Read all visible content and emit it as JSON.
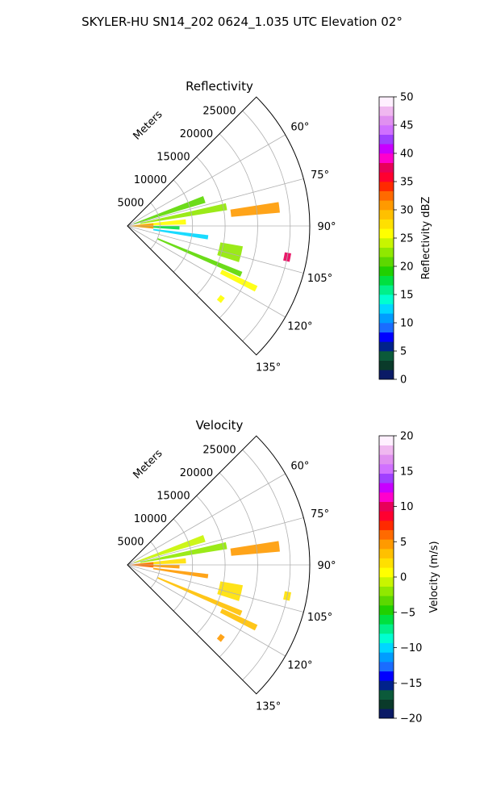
{
  "figure": {
    "title": "SKYLER-HU  SN14_202  0624_1.035 UTC Elevation 02°"
  },
  "chart_data": [
    {
      "type": "heatmap",
      "projection": "polar-sector",
      "title": "Reflectivity",
      "range_label": "Meters",
      "range_ticks": [
        "5000",
        "10000",
        "15000",
        "20000",
        "25000"
      ],
      "range_tick_values": [
        5000,
        10000,
        15000,
        20000,
        25000
      ],
      "range_max": 28000,
      "azimuth_range": [
        45,
        135
      ],
      "azimuth_ticks": [
        "60°",
        "75°",
        "90°",
        "105°",
        "120°",
        "135°"
      ],
      "azimuth_tick_values": [
        60,
        75,
        90,
        105,
        120,
        135
      ],
      "grid": true,
      "colorbar": {
        "label": "Reflectivity dBZ",
        "min": 0,
        "max": 50,
        "ticks": [
          "0",
          "5",
          "10",
          "15",
          "20",
          "25",
          "30",
          "35",
          "40",
          "45",
          "50"
        ],
        "tick_values": [
          0,
          5,
          10,
          15,
          20,
          25,
          30,
          35,
          40,
          45,
          50
        ],
        "colors": [
          "#0a1a66",
          "#0a3a2a",
          "#0b5a3a",
          "#00228b",
          "#0000ff",
          "#1a6cff",
          "#009dff",
          "#00d7ff",
          "#00ffd0",
          "#00f08a",
          "#00e040",
          "#20d000",
          "#5cd800",
          "#90e800",
          "#c8f500",
          "#ffff00",
          "#ffe000",
          "#ffc000",
          "#ff9a00",
          "#ff6a00",
          "#ff2a00",
          "#ff0030",
          "#e8005a",
          "#ff00cc",
          "#c800ff",
          "#a040ff",
          "#d070ff",
          "#e090f0",
          "#f0b8f0",
          "#fff0ff"
        ]
      },
      "echoes": [
        {
          "az": 71,
          "r0": 1000,
          "r1": 12500,
          "w": 5,
          "v": 20
        },
        {
          "az": 79,
          "r0": 2000,
          "r1": 15500,
          "w": 4,
          "v": 22
        },
        {
          "az": 86,
          "r0": 1200,
          "r1": 9000,
          "w": 5,
          "v": 25
        },
        {
          "az": 92,
          "r0": 500,
          "r1": 8000,
          "w": 4,
          "v": 18
        },
        {
          "az": 98,
          "r0": 4000,
          "r1": 12500,
          "w": 3,
          "v": 13
        },
        {
          "az": 83,
          "r0": 16000,
          "r1": 23500,
          "w": 4,
          "v": 31
        },
        {
          "az": 113,
          "r0": 5000,
          "r1": 19000,
          "w": 2.5,
          "v": 21
        },
        {
          "az": 116,
          "r0": 16000,
          "r1": 22000,
          "w": 2.5,
          "v": 26
        },
        {
          "az": 104,
          "r0": 14500,
          "r1": 18000,
          "w": 8,
          "v": 22
        },
        {
          "az": 101,
          "r0": 24500,
          "r1": 25500,
          "w": 3,
          "v": 38
        },
        {
          "az": 128,
          "r0": 17800,
          "r1": 18600,
          "w": 3,
          "v": 25
        },
        {
          "az": 90,
          "r0": 500,
          "r1": 4000,
          "w": 12,
          "v": 30
        }
      ]
    },
    {
      "type": "heatmap",
      "projection": "polar-sector",
      "title": "Velocity",
      "range_label": "Meters",
      "range_ticks": [
        "5000",
        "10000",
        "15000",
        "20000",
        "25000"
      ],
      "range_tick_values": [
        5000,
        10000,
        15000,
        20000,
        25000
      ],
      "range_max": 28000,
      "azimuth_range": [
        45,
        135
      ],
      "azimuth_ticks": [
        "60°",
        "75°",
        "90°",
        "105°",
        "120°",
        "135°"
      ],
      "azimuth_tick_values": [
        60,
        75,
        90,
        105,
        120,
        135
      ],
      "grid": true,
      "colorbar": {
        "label": "Velocity (m/s)",
        "min": -20,
        "max": 20,
        "ticks": [
          "−20",
          "−15",
          "−10",
          "−5",
          "0",
          "5",
          "10",
          "15",
          "20"
        ],
        "tick_values": [
          -20,
          -15,
          -10,
          -5,
          0,
          5,
          10,
          15,
          20
        ],
        "colors": [
          "#0a1a66",
          "#0a3a2a",
          "#0b5a3a",
          "#00228b",
          "#0000ff",
          "#1a6cff",
          "#009dff",
          "#00d7ff",
          "#00ffd0",
          "#00f08a",
          "#00e040",
          "#20d000",
          "#5cd800",
          "#90e800",
          "#c8f500",
          "#ffff00",
          "#ffe000",
          "#ffc000",
          "#ff9a00",
          "#ff6a00",
          "#ff2a00",
          "#ff0030",
          "#e8005a",
          "#ff00cc",
          "#c800ff",
          "#a040ff",
          "#d070ff",
          "#e090f0",
          "#f0b8f0",
          "#fff0ff"
        ]
      },
      "echoes": [
        {
          "az": 71,
          "r0": 1000,
          "r1": 12500,
          "w": 5,
          "v": -1
        },
        {
          "az": 79,
          "r0": 2000,
          "r1": 15500,
          "w": 4,
          "v": -2
        },
        {
          "az": 86,
          "r0": 1200,
          "r1": 9000,
          "w": 5,
          "v": 2
        },
        {
          "az": 92,
          "r0": 500,
          "r1": 8000,
          "w": 4,
          "v": 5
        },
        {
          "az": 98,
          "r0": 4000,
          "r1": 12500,
          "w": 3,
          "v": 4
        },
        {
          "az": 83,
          "r0": 16000,
          "r1": 23500,
          "w": 4,
          "v": 4
        },
        {
          "az": 113,
          "r0": 5000,
          "r1": 19000,
          "w": 2.5,
          "v": 3
        },
        {
          "az": 116,
          "r0": 16000,
          "r1": 22000,
          "w": 2.5,
          "v": 3
        },
        {
          "az": 104,
          "r0": 14500,
          "r1": 18000,
          "w": 8,
          "v": 2
        },
        {
          "az": 101,
          "r0": 24500,
          "r1": 25500,
          "w": 3,
          "v": 2
        },
        {
          "az": 128,
          "r0": 17800,
          "r1": 18600,
          "w": 3,
          "v": 4
        },
        {
          "az": 90,
          "r0": 500,
          "r1": 4000,
          "w": 12,
          "v": 6
        }
      ]
    }
  ]
}
